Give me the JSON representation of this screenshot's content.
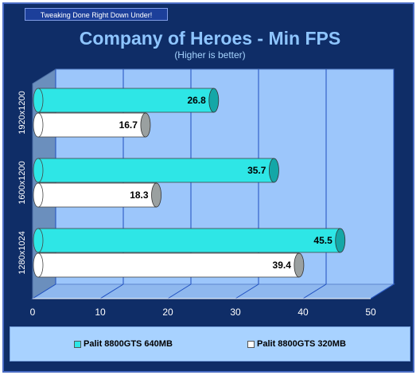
{
  "banner": "Tweaking Done Right Down Under!",
  "chart_data": {
    "type": "bar",
    "orientation": "horizontal",
    "title": "Company of Heroes - Min FPS",
    "subtitle": "(Higher is better)",
    "categories": [
      "1920x1200",
      "1600x1200",
      "1280x1024"
    ],
    "series": [
      {
        "name": "Palit 8800GTS 640MB",
        "values": [
          26.8,
          35.7,
          45.5
        ],
        "color": "#2ee6e6"
      },
      {
        "name": "Palit 8800GTS 320MB",
        "values": [
          16.7,
          18.3,
          39.4
        ],
        "color": "#ffffff"
      }
    ],
    "xlim": [
      0,
      50
    ],
    "xticks": [
      "0",
      "10",
      "20",
      "30",
      "40",
      "50"
    ],
    "grid": true,
    "legend_position": "bottom"
  }
}
